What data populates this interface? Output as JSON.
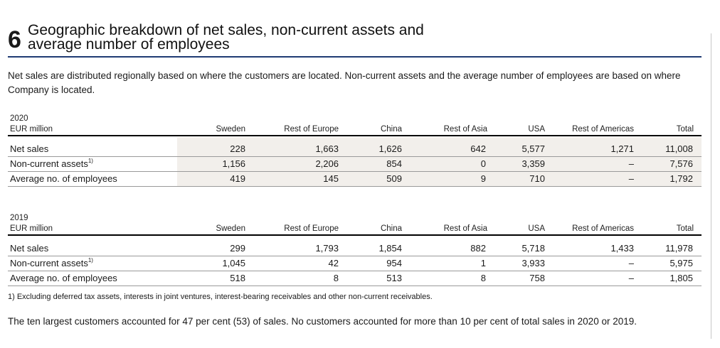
{
  "section": {
    "number": "6",
    "title_line1": "Geographic breakdown of net sales, non-current assets and",
    "title_line2": "average number of employees"
  },
  "intro": "Net sales are distributed regionally based on where the customers are located. Non-current assets and the average number of employees are based on where Company is located.",
  "columns": [
    "Sweden",
    "Rest of Europe",
    "China",
    "Rest of Asia",
    "USA",
    "Rest of Americas",
    "Total"
  ],
  "tables": [
    {
      "year": "2020",
      "unit": "EUR million",
      "rows": [
        {
          "label": "Net sales",
          "sup": "",
          "values": [
            "228",
            "1,663",
            "1,626",
            "642",
            "5,577",
            "1,271",
            "11,008"
          ]
        },
        {
          "label": "Non-current assets",
          "sup": "1)",
          "values": [
            "1,156",
            "2,206",
            "854",
            "0",
            "3,359",
            "–",
            "7,576"
          ]
        },
        {
          "label": "Average no. of employees",
          "sup": "",
          "values": [
            "419",
            "145",
            "509",
            "9",
            "710",
            "–",
            "1,792"
          ]
        }
      ]
    },
    {
      "year": "2019",
      "unit": "EUR million",
      "rows": [
        {
          "label": "Net sales",
          "sup": "",
          "values": [
            "299",
            "1,793",
            "1,854",
            "882",
            "5,718",
            "1,433",
            "11,978"
          ]
        },
        {
          "label": "Non-current assets",
          "sup": "1)",
          "values": [
            "1,045",
            "42",
            "954",
            "1",
            "3,933",
            "–",
            "5,975"
          ]
        },
        {
          "label": "Average no. of employees",
          "sup": "",
          "values": [
            "518",
            "8",
            "513",
            "8",
            "758",
            "–",
            "1,805"
          ]
        }
      ]
    }
  ],
  "footnote": "1) Excluding deferred tax assets, interests in joint ventures, interest-bearing receivables and other non-current receivables.",
  "closing": "The ten largest customers accounted for 47 per cent (53) of sales. No customers accounted for more than 10 per cent of total sales in 2020 or 2019.",
  "colors": {
    "heading_rule": "#1f3b73",
    "shade": "#f2efeb"
  }
}
